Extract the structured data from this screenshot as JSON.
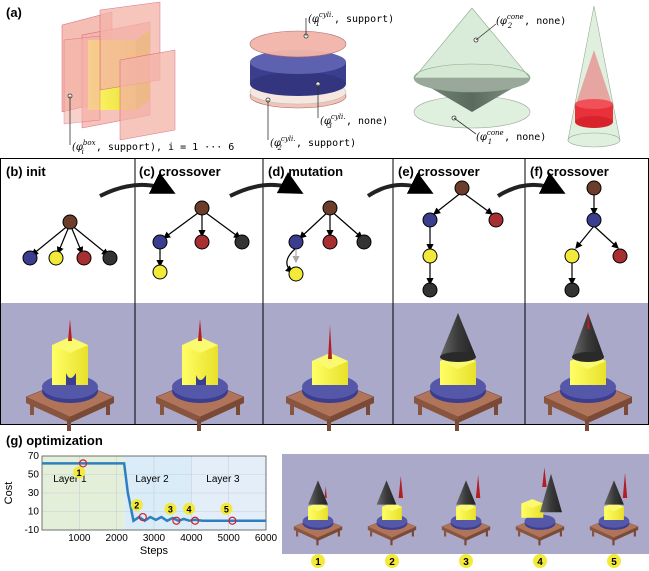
{
  "panel_a": {
    "label": "(a)",
    "box_caption_phi": "(φ",
    "box_caption_sup": "box",
    "box_caption_sub": "i",
    "box_caption_rest": ", support), i = 1 ··· 6",
    "cyl_top_phi": "(φ",
    "cyl_top_sup": "cyli.",
    "cyl_top_sub": "1",
    "cyl_top_rest": ", support)",
    "cyl_mid_phi": "(φ",
    "cyl_mid_sup": "cyli.",
    "cyl_mid_sub": "3",
    "cyl_mid_rest": ", none)",
    "cyl_bot_phi": "(φ",
    "cyl_bot_sup": "cyli.",
    "cyl_bot_sub": "2",
    "cyl_bot_rest": ", support)",
    "cone_top_phi": "(φ",
    "cone_top_sup": "cone",
    "cone_top_sub": "2",
    "cone_top_rest": ", none)",
    "cone_bot_phi": "(φ",
    "cone_bot_sup": "cone",
    "cone_bot_sub": "1",
    "cone_bot_rest": ", none)"
  },
  "panels": [
    {
      "label": "(b) init"
    },
    {
      "label": "(c) crossover"
    },
    {
      "label": "(d) mutation"
    },
    {
      "label": "(e) crossover"
    },
    {
      "label": "(f) crossover"
    }
  ],
  "colors": {
    "brown": "#6b3d2a",
    "blue": "#3b3d8f",
    "red": "#a62f32",
    "yellow": "#f3e93a",
    "dark": "#333333",
    "render_bg": "#aaa9c9",
    "plot_line": "#2f7fc0",
    "layer1_bg": "#e3efd9",
    "layer2_bg": "#d9ecf8",
    "layer3_bg": "#e4eef8"
  },
  "panel_g": {
    "label": "(g) optimization",
    "x_label": "Steps",
    "y_label": "Cost",
    "layer1": "Layer 1",
    "layer2": "Layer 2",
    "layer3": "Layer 3",
    "markers": [
      "1",
      "2",
      "3",
      "4",
      "5"
    ],
    "thumb_labels": [
      "1",
      "2",
      "3",
      "4",
      "5"
    ]
  },
  "chart_data": {
    "type": "line",
    "xlabel": "Steps",
    "ylabel": "Cost",
    "xlim": [
      0,
      6000
    ],
    "ylim": [
      -10,
      70
    ],
    "x_ticks": [
      1000,
      2000,
      3000,
      4000,
      5000,
      6000
    ],
    "y_ticks": [
      -10,
      10,
      30,
      50,
      70
    ],
    "y_tick_labels": [
      "-10",
      "10",
      "30",
      "50",
      "70"
    ],
    "x_tick_labels": [
      "1000",
      "2000",
      "3000",
      "4000",
      "5000",
      "6000"
    ],
    "series": [
      {
        "x": [
          0,
          2200,
          2300,
          2450,
          2600,
          2750,
          2900,
          3050,
          3200,
          3350,
          3500,
          3650,
          3800,
          3950,
          4100,
          4300,
          6000
        ],
        "y": [
          62,
          62,
          30,
          0,
          4,
          0,
          4,
          1,
          4,
          0,
          3,
          0,
          2,
          0,
          1,
          0,
          0
        ]
      }
    ],
    "regions": [
      {
        "label": "Layer 1",
        "x": [
          0,
          2200
        ]
      },
      {
        "label": "Layer 2",
        "x": [
          2200,
          4000
        ]
      },
      {
        "label": "Layer 3",
        "x": [
          4000,
          6000
        ]
      }
    ],
    "markers": [
      {
        "label": "1",
        "x": 1100,
        "y": 62
      },
      {
        "label": "2",
        "x": 2700,
        "y": 4
      },
      {
        "label": "3",
        "x": 3600,
        "y": 0
      },
      {
        "label": "4",
        "x": 4100,
        "y": 0
      },
      {
        "label": "5",
        "x": 5100,
        "y": 0
      }
    ]
  }
}
